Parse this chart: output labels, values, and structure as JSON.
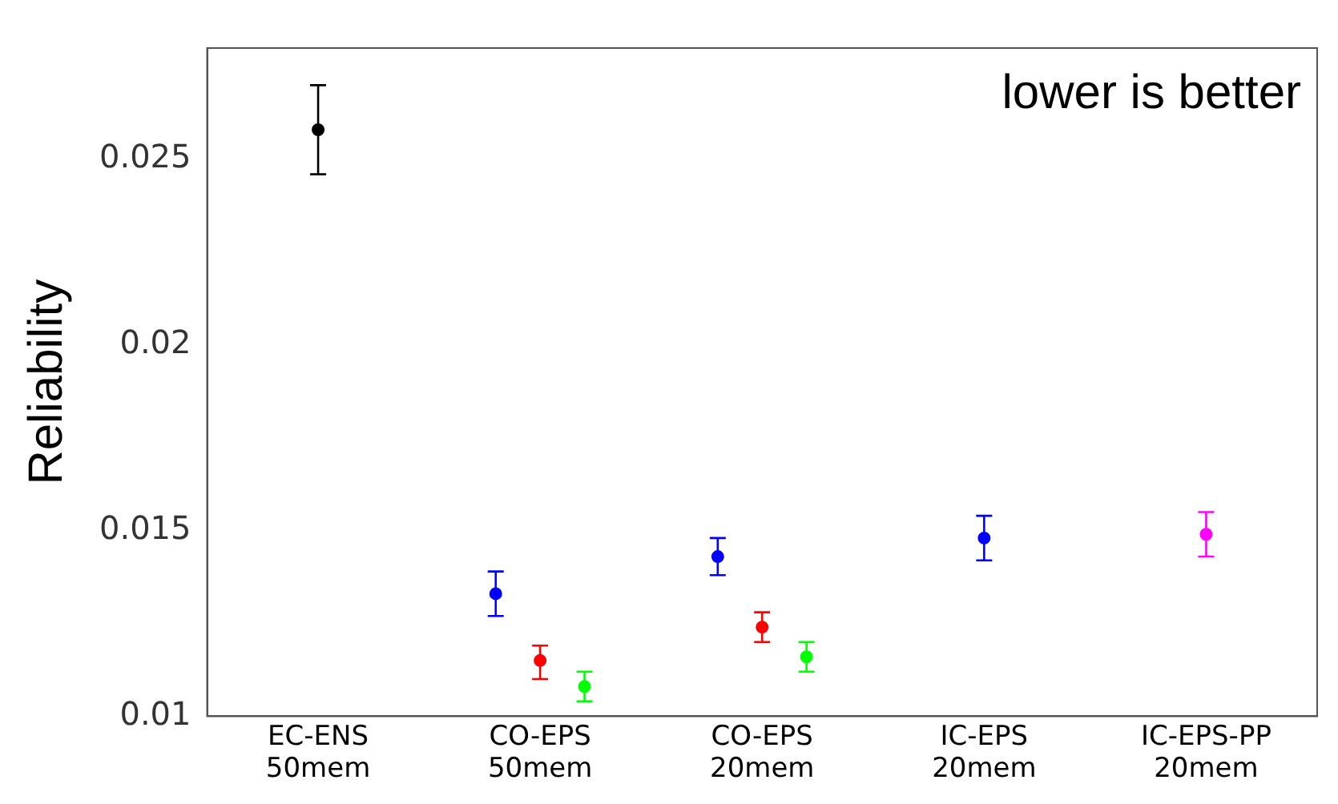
{
  "chart_data": {
    "type": "scatter",
    "ylabel": "Reliability",
    "categories": [
      "EC-ENS 50mem",
      "CO-EPS 50mem",
      "CO-EPS 20mem",
      "IC-EPS 20mem",
      "IC-EPS-PP 20mem"
    ],
    "ylim": [
      0.01,
      0.028
    ],
    "yticks": [
      0.01,
      0.015,
      0.02,
      0.025
    ],
    "grid": false,
    "legend": false,
    "marker": "circle",
    "annotations": [
      "lower is better"
    ],
    "series": [
      {
        "color": "#000000",
        "values": [
          0.0258,
          null,
          null,
          null,
          null
        ],
        "errors": [
          [
            0.0246,
            0.027
          ],
          null,
          null,
          null,
          null
        ]
      },
      {
        "color": "#0000ff",
        "values": [
          null,
          0.0133,
          0.0143,
          0.0148,
          null
        ],
        "errors": [
          null,
          [
            0.0127,
            0.0139
          ],
          [
            0.0138,
            0.0148
          ],
          [
            0.0142,
            0.0154
          ],
          null
        ]
      },
      {
        "color": "#ff0000",
        "values": [
          null,
          0.0115,
          0.0124,
          null,
          null
        ],
        "errors": [
          null,
          [
            0.011,
            0.0119
          ],
          [
            0.012,
            0.0128
          ],
          null,
          null
        ]
      },
      {
        "color": "#00ff00",
        "values": [
          null,
          0.0108,
          0.0116,
          null,
          null
        ],
        "errors": [
          null,
          [
            0.0104,
            0.0112
          ],
          [
            0.0112,
            0.012
          ],
          null,
          null
        ]
      },
      {
        "color": "#ff00ff",
        "values": [
          null,
          null,
          null,
          null,
          0.0149
        ],
        "errors": [
          null,
          null,
          null,
          null,
          [
            0.0143,
            0.0155
          ]
        ]
      }
    ]
  }
}
